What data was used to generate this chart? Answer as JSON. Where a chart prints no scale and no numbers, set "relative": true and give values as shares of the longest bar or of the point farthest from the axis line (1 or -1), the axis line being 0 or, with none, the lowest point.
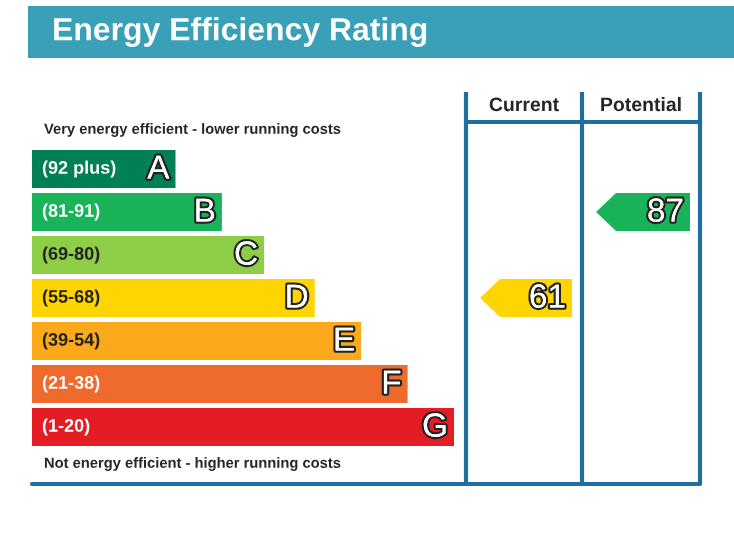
{
  "chart_data": {
    "type": "bar",
    "orientation": "horizontal",
    "relative": true,
    "title": "Energy Efficiency Rating",
    "values": [
      0.34,
      0.45,
      0.55,
      0.67,
      0.78,
      0.89,
      1
    ],
    "categories": [
      "(92 plus) A",
      "(81-91) B",
      "(69-80) C",
      "(55-68) D",
      "(39-54) E",
      "(21-38) F",
      "(1-20) G"
    ],
    "colors": [
      "#008054",
      "#19b459",
      "#8dce46",
      "#ffd500",
      "#fcaa1c",
      "#ef6b2d",
      "#e31d23"
    ],
    "annotations": [
      "Very energy efficient - lower running costs",
      "Not energy efficient - higher running costs",
      "Current",
      "Potential",
      "61",
      "87"
    ]
  }
}
